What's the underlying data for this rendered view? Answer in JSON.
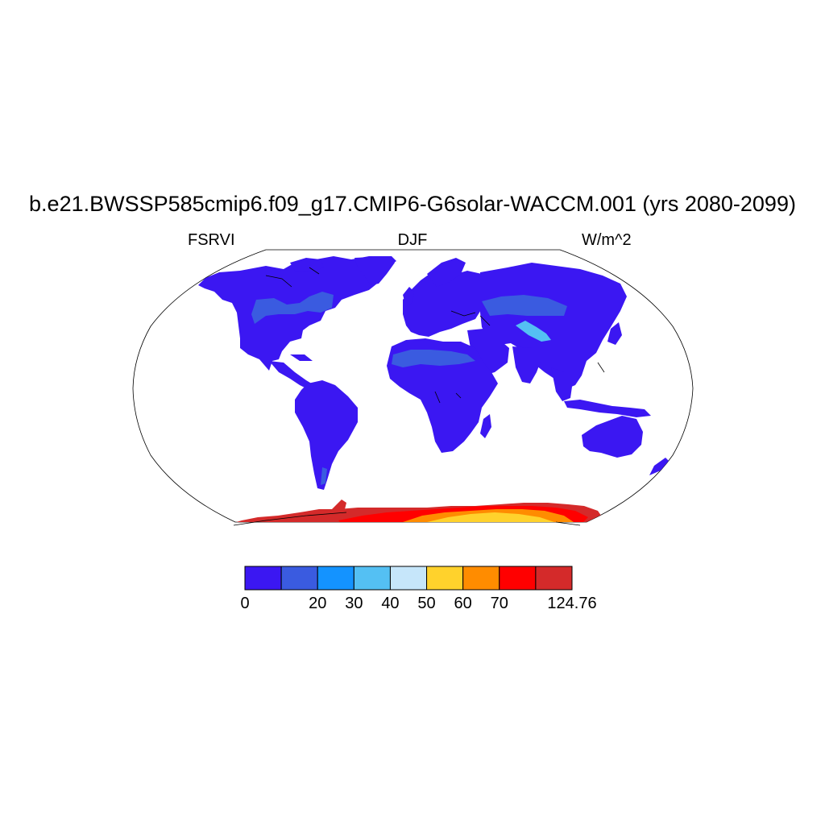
{
  "plot": {
    "title": "b.e21.BWSSP585cmip6.f09_g17.CMIP6-G6solar-WACCM.001 (yrs 2080-2099)",
    "left_label": "FSRVI",
    "center_label": "DJF",
    "right_label": "W/m^2"
  },
  "colorbar": {
    "labels": [
      "0",
      "20",
      "30",
      "40",
      "50",
      "60",
      "70",
      "124.76"
    ],
    "bins": [
      {
        "color": "#3b17f2",
        "from": 0,
        "to": 10
      },
      {
        "color": "#3a5be0",
        "from": 10,
        "to": 20
      },
      {
        "color": "#1493ff",
        "from": 20,
        "to": 30
      },
      {
        "color": "#54c0f3",
        "from": 30,
        "to": 40
      },
      {
        "color": "#c6e6fa",
        "from": 40,
        "to": 50
      },
      {
        "color": "#ffd22c",
        "from": 50,
        "to": 60
      },
      {
        "color": "#ff8c00",
        "from": 60,
        "to": 70
      },
      {
        "color": "#ff0000",
        "from": 70,
        "to": 80
      },
      {
        "color": "#d42a2a",
        "from": 80,
        "to": 124.76
      }
    ]
  },
  "colors": {
    "land_low": "#3b17f2",
    "land_mid": "#3a5be0",
    "light_blue": "#54c0f3",
    "antarctica_high": "#d42a2a",
    "antarctica_red": "#ff0000",
    "antarctica_orange": "#ff8c00",
    "antarctica_yellow": "#ffd22c"
  }
}
